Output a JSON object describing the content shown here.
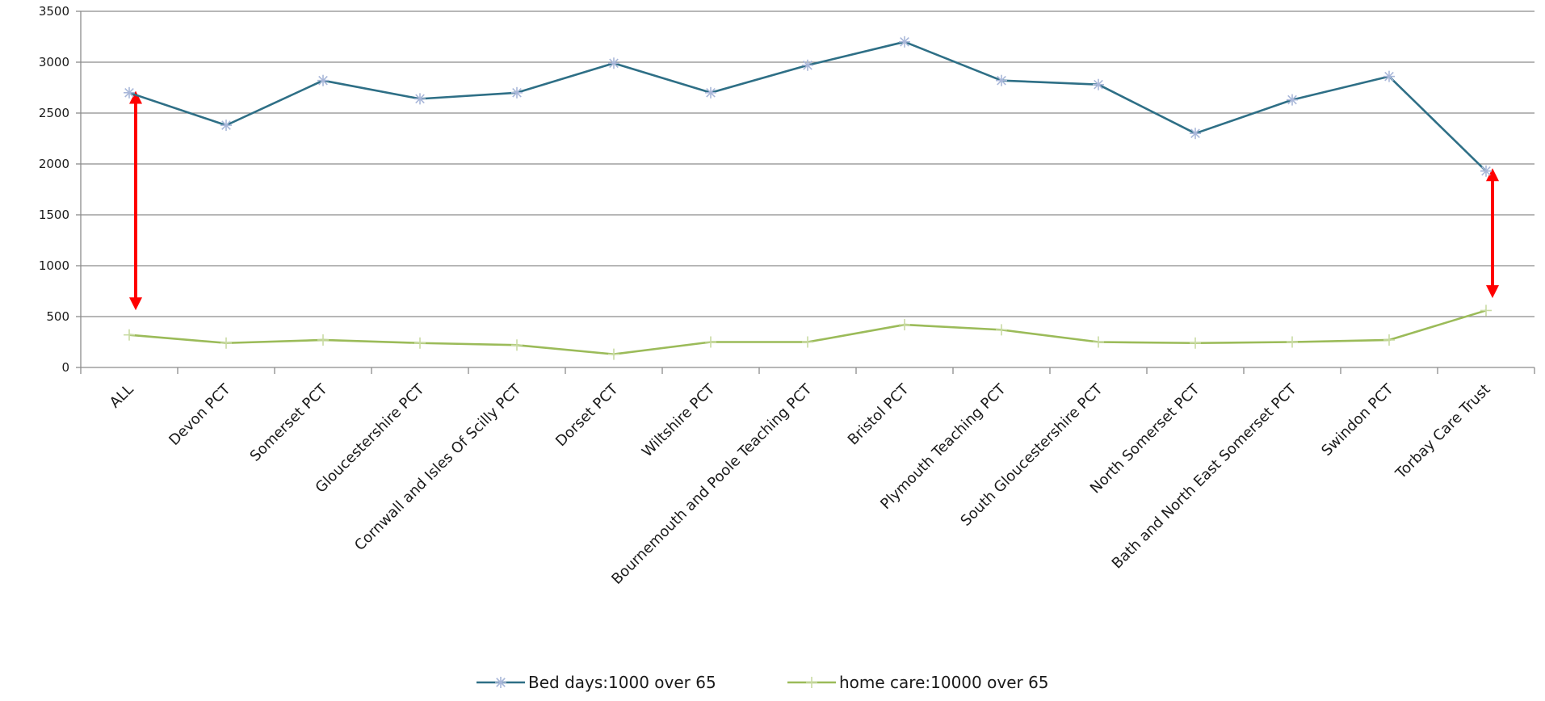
{
  "chart_data": {
    "type": "line",
    "title": "",
    "xlabel": "",
    "ylabel": "",
    "ylim": [
      0,
      3500
    ],
    "yticks": [
      0,
      500,
      1000,
      1500,
      2000,
      2500,
      3000,
      3500
    ],
    "categories": [
      "ALL",
      "Devon PCT",
      "Somerset PCT",
      "Gloucestershire PCT",
      "Cornwall and Isles Of Scilly PCT",
      "Dorset PCT",
      "Wiltshire PCT",
      "Bournemouth and Poole Teaching PCT",
      "Bristol PCT",
      "Plymouth Teaching PCT",
      "South Gloucestershire PCT",
      "North Somerset PCT",
      "Bath and North East Somerset PCT",
      "Swindon PCT",
      "Torbay Care Trust"
    ],
    "series": [
      {
        "name": "Bed days:1000 over 65",
        "color": "#2e6f86",
        "marker": "asterisk",
        "values": [
          2700,
          2380,
          2820,
          2640,
          2700,
          2990,
          2700,
          2970,
          3200,
          2820,
          2780,
          2300,
          2630,
          2860,
          1930
        ]
      },
      {
        "name": "home care:10000 over 65",
        "color": "#9bbb59",
        "marker": "plus",
        "values": [
          320,
          240,
          270,
          240,
          220,
          130,
          250,
          250,
          420,
          370,
          250,
          240,
          250,
          270,
          560
        ]
      }
    ],
    "grid": true,
    "legend": "bottom",
    "annotations": [
      {
        "type": "double-arrow",
        "category": "ALL",
        "from": 2680,
        "to": 600,
        "color": "#ff0000"
      },
      {
        "type": "double-arrow",
        "category": "Torbay Care Trust",
        "from": 1920,
        "to": 720,
        "color": "#ff0000"
      }
    ]
  }
}
